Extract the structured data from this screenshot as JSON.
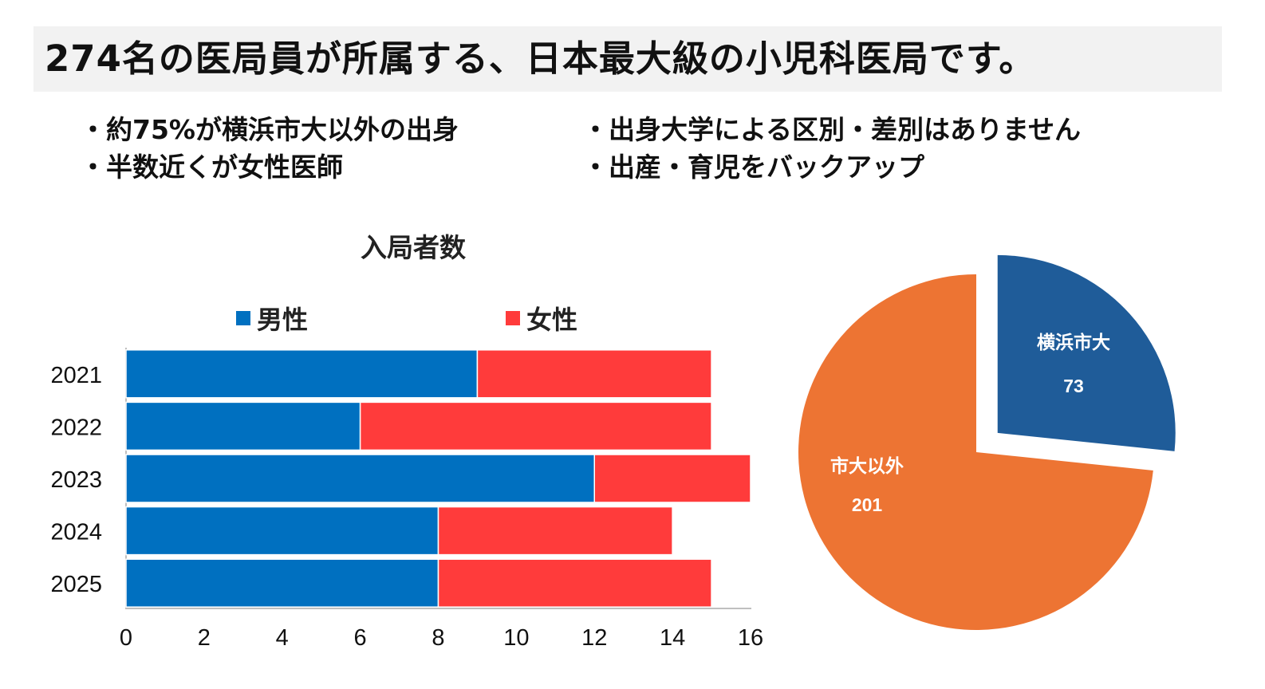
{
  "title": "274名の医局員が所属する、日本最大級の小児科医局です。",
  "bullets": [
    "・約75%が横浜市大以外の出身",
    "・半数近くが女性医師",
    "・出身大学による区別・差別はありません",
    "・出産・育児をバックアップ"
  ],
  "chart_data": [
    {
      "type": "bar",
      "orientation": "horizontal",
      "stacked": true,
      "title": "入局者数",
      "categories": [
        "2021",
        "2022",
        "2023",
        "2024",
        "2025"
      ],
      "series": [
        {
          "name": "男性",
          "color": "#0070c0",
          "values": [
            9,
            6,
            12,
            8,
            8
          ]
        },
        {
          "name": "女性",
          "color": "#ff3b3b",
          "values": [
            6,
            9,
            4,
            6,
            7
          ]
        }
      ],
      "xlim": [
        0,
        16
      ],
      "xticks": [
        0,
        2,
        4,
        6,
        8,
        10,
        12,
        14,
        16
      ],
      "legend_position": "top"
    },
    {
      "type": "pie",
      "slices": [
        {
          "label": "横浜市大",
          "value": 73,
          "color": "#1f5c99",
          "exploded": true
        },
        {
          "label": "市大以外",
          "value": 201,
          "color": "#ed7433",
          "exploded": false
        }
      ]
    }
  ]
}
